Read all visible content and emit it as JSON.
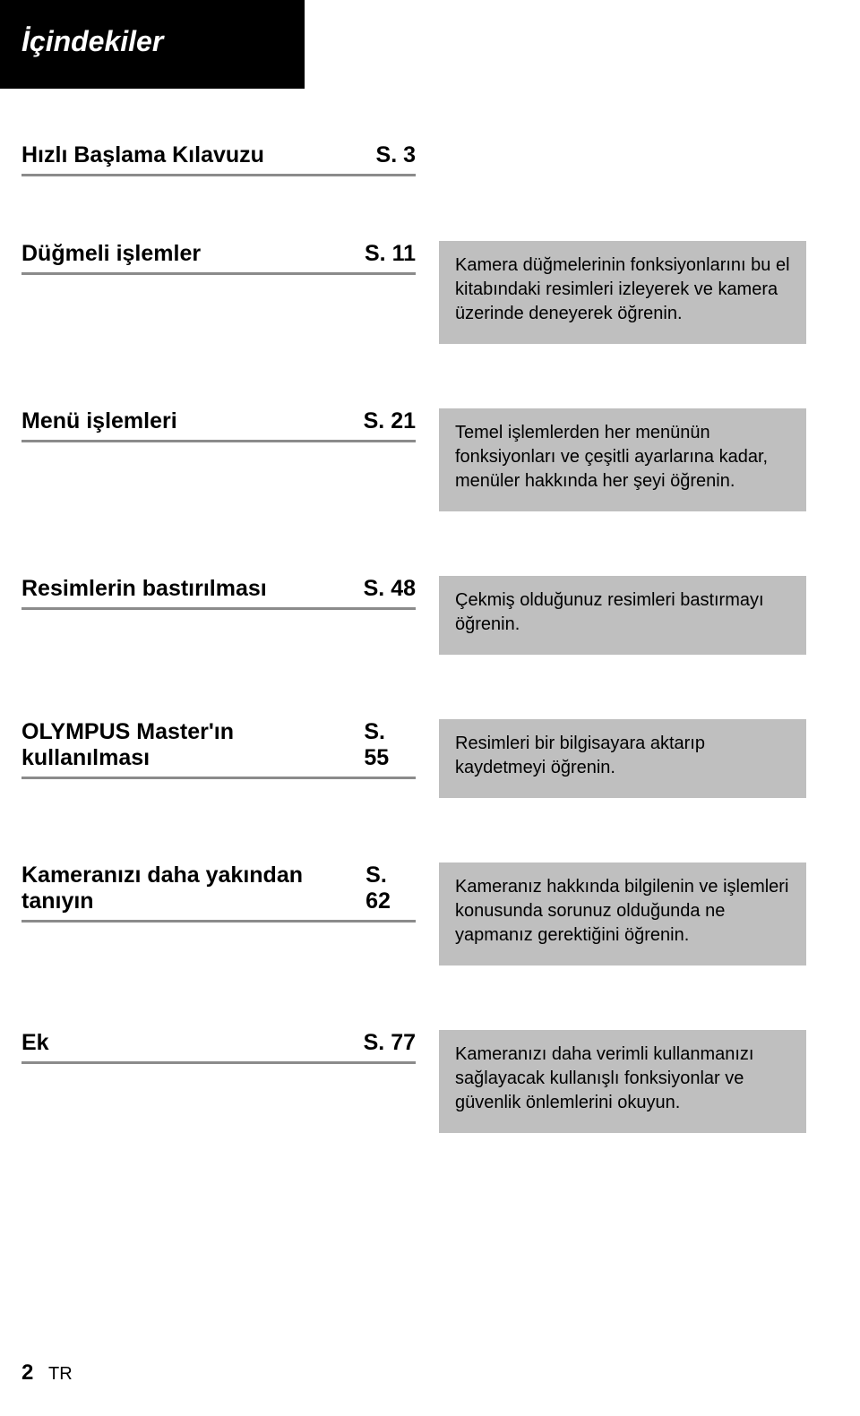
{
  "header": {
    "title": "İçindekiler"
  },
  "toc": [
    {
      "title": "Hızlı Başlama Kılavuzu",
      "page": "S. 3",
      "desc": null
    },
    {
      "title": "Düğmeli işlemler",
      "page": "S. 11",
      "desc": "Kamera düğmelerinin fonksiyonlarını bu el kitabındaki resimleri izleyerek ve kamera üzerinde deneyerek öğrenin."
    },
    {
      "title": "Menü işlemleri",
      "page": "S. 21",
      "desc": "Temel işlemlerden her menünün fonksiyonları ve çeşitli ayarlarına kadar, menüler hakkında her şeyi öğrenin."
    },
    {
      "title": "Resimlerin bastırılması",
      "page": "S. 48",
      "desc": "Çekmiş olduğunuz resimleri bastırmayı öğrenin."
    },
    {
      "title": "OLYMPUS Master'ın kullanılması",
      "page": "S. 55",
      "desc": "Resimleri bir bilgisayara aktarıp kaydetmeyi öğrenin."
    },
    {
      "title": "Kameranızı daha yakından tanıyın",
      "page": "S. 62",
      "desc": "Kameranız hakkında bilgilenin ve işlemleri konusunda sorunuz olduğunda ne yapmanız gerektiğini öğrenin."
    },
    {
      "title": "Ek",
      "page": "S. 77",
      "desc": "Kameranızı daha verimli kullanmanızı sağlayacak kullanışlı fonksiyonlar ve güvenlik önlemlerini okuyun."
    }
  ],
  "footer": {
    "page_number": "2",
    "lang": "TR"
  },
  "colors": {
    "header_bg": "#000000",
    "header_text": "#ffffff",
    "desc_bg": "#bfbfbf",
    "rule": "#8b8b8b",
    "page_bg": "#ffffff",
    "text": "#000000"
  }
}
